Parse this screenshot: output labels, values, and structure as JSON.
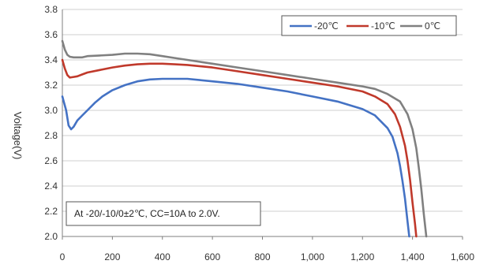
{
  "chart_data": {
    "type": "line",
    "title": "",
    "xlabel": "",
    "ylabel": "Voltage(V)",
    "xlim": [
      0,
      1600
    ],
    "ylim": [
      2.0,
      3.8
    ],
    "x_ticks": [
      "0",
      "200",
      "400",
      "600",
      "800",
      "1,000",
      "1,200",
      "1,400",
      "1,600"
    ],
    "x_tick_values": [
      0,
      200,
      400,
      600,
      800,
      1000,
      1200,
      1400,
      1600
    ],
    "y_ticks": [
      "2.0",
      "2.2",
      "2.4",
      "2.6",
      "2.8",
      "3.0",
      "3.2",
      "3.4",
      "3.6",
      "3.8"
    ],
    "y_tick_values": [
      2.0,
      2.2,
      2.4,
      2.6,
      2.8,
      3.0,
      3.2,
      3.4,
      3.6,
      3.8
    ],
    "grid": "horizontal",
    "legend_position": "top-right",
    "annotation": "At -20/-10/0±2℃, CC=10A to 2.0V.",
    "series": [
      {
        "name": "-20℃",
        "color": "#4472c4",
        "x": [
          0,
          15,
          25,
          35,
          45,
          60,
          80,
          100,
          130,
          160,
          200,
          250,
          300,
          350,
          400,
          450,
          500,
          550,
          600,
          700,
          800,
          900,
          1000,
          1100,
          1200,
          1250,
          1300,
          1320,
          1340,
          1350,
          1360,
          1370,
          1380,
          1387
        ],
        "y": [
          3.11,
          3.0,
          2.88,
          2.85,
          2.87,
          2.92,
          2.96,
          3.0,
          3.06,
          3.11,
          3.16,
          3.2,
          3.23,
          3.245,
          3.25,
          3.25,
          3.25,
          3.24,
          3.23,
          3.21,
          3.18,
          3.15,
          3.11,
          3.07,
          3.01,
          2.96,
          2.86,
          2.79,
          2.66,
          2.56,
          2.44,
          2.3,
          2.12,
          2.0
        ]
      },
      {
        "name": "-10℃",
        "color": "#c0392b",
        "x": [
          0,
          10,
          20,
          30,
          45,
          60,
          80,
          100,
          150,
          200,
          250,
          300,
          350,
          400,
          450,
          500,
          600,
          700,
          800,
          900,
          1000,
          1100,
          1200,
          1250,
          1300,
          1330,
          1350,
          1370,
          1380,
          1390,
          1400,
          1410,
          1415
        ],
        "y": [
          3.4,
          3.33,
          3.28,
          3.26,
          3.265,
          3.27,
          3.285,
          3.3,
          3.32,
          3.34,
          3.355,
          3.365,
          3.37,
          3.37,
          3.365,
          3.36,
          3.34,
          3.31,
          3.28,
          3.25,
          3.22,
          3.19,
          3.15,
          3.11,
          3.05,
          2.97,
          2.87,
          2.72,
          2.6,
          2.45,
          2.27,
          2.1,
          2.0
        ]
      },
      {
        "name": "0℃",
        "color": "#808080",
        "x": [
          0,
          10,
          20,
          30,
          45,
          60,
          80,
          100,
          150,
          200,
          250,
          300,
          350,
          400,
          450,
          500,
          600,
          700,
          800,
          900,
          1000,
          1100,
          1200,
          1250,
          1300,
          1350,
          1380,
          1400,
          1415,
          1425,
          1435,
          1445,
          1455
        ],
        "y": [
          3.55,
          3.48,
          3.44,
          3.425,
          3.42,
          3.42,
          3.42,
          3.43,
          3.435,
          3.44,
          3.45,
          3.45,
          3.445,
          3.43,
          3.415,
          3.4,
          3.37,
          3.34,
          3.31,
          3.28,
          3.25,
          3.22,
          3.19,
          3.17,
          3.13,
          3.07,
          2.97,
          2.85,
          2.7,
          2.55,
          2.38,
          2.18,
          2.0
        ]
      }
    ]
  }
}
